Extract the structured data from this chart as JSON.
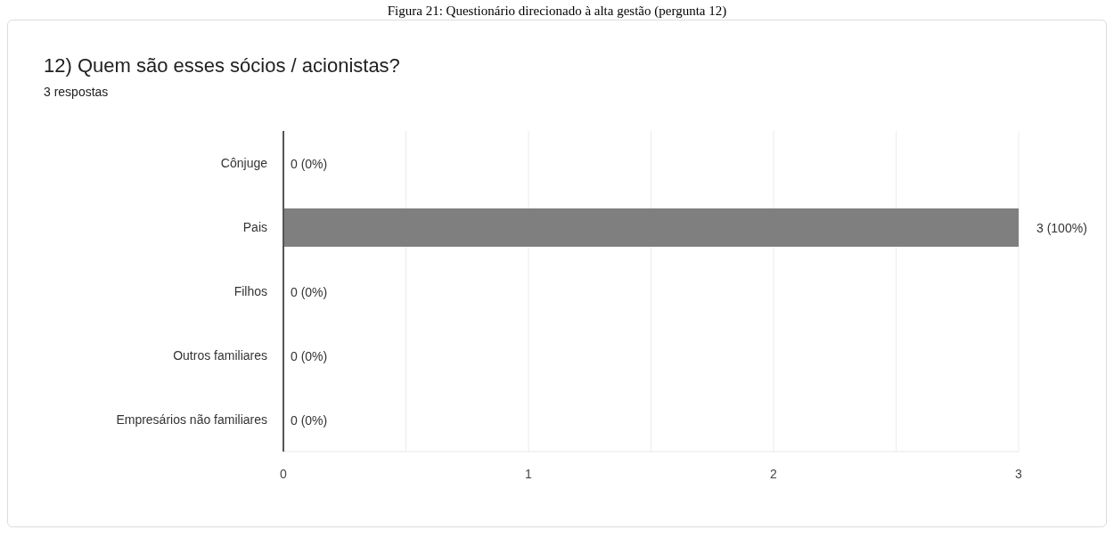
{
  "chart_data": {
    "type": "bar",
    "orientation": "horizontal",
    "title": "12) Quem são esses sócios / acionistas?",
    "subtitle": "3 respostas",
    "annotations": [
      "Figura 21: Questionário direcionado à alta gestão (pergunta 12)"
    ],
    "categories": [
      "Cônjuge",
      "Pais",
      "Filhos",
      "Outros familiares",
      "Empresários não familiares"
    ],
    "values": [
      0,
      3,
      0,
      0,
      0
    ],
    "color": "#7f7f7f",
    "value_labels": [
      "0 (0%)",
      "3 (100%)",
      "0 (0%)",
      "0 (0%)",
      "0 (0%)"
    ],
    "xlim": [
      0,
      3
    ],
    "xticks": [
      0,
      {
        "value": 0.5,
        "label": null
      },
      1,
      {
        "value": 1.5,
        "label": null
      },
      2,
      {
        "value": 2.5,
        "label": null
      },
      3
    ],
    "grid": "x",
    "legend": false
  }
}
